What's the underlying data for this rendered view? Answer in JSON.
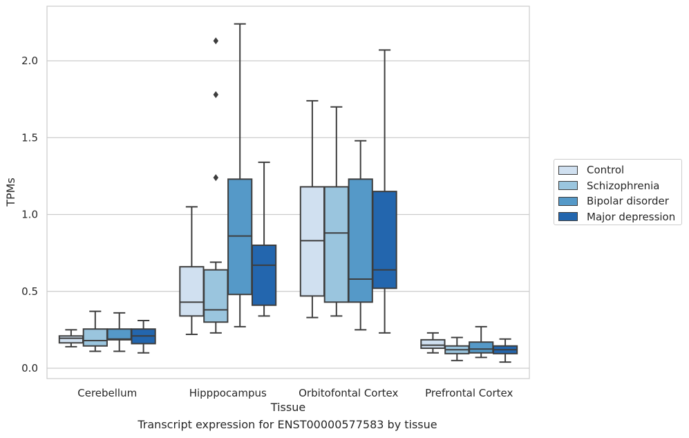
{
  "chart_data": {
    "type": "box",
    "title": "Transcript expression for ENST00000577583 by tissue",
    "xlabel": "Tissue",
    "ylabel": "TPMs",
    "ylim": [
      -0.07,
      2.35
    ],
    "yticks": [
      0.0,
      0.5,
      1.0,
      1.5,
      2.0
    ],
    "ytick_labels": [
      "0.0",
      "0.5",
      "1.0",
      "1.5",
      "2.0"
    ],
    "grid": "horizontal",
    "legend_position": "right",
    "categories": [
      "Cerebellum",
      "Hipppocampus",
      "Orbitofontal Cortex",
      "Prefrontal Cortex"
    ],
    "series": [
      {
        "name": "Control",
        "color": "#d0e0f0",
        "boxes": [
          {
            "whislo": 0.14,
            "q1": 0.165,
            "med": 0.195,
            "q3": 0.21,
            "whishi": 0.25,
            "fliers": []
          },
          {
            "whislo": 0.22,
            "q1": 0.34,
            "med": 0.43,
            "q3": 0.66,
            "whishi": 1.05,
            "fliers": []
          },
          {
            "whislo": 0.33,
            "q1": 0.47,
            "med": 0.83,
            "q3": 1.18,
            "whishi": 1.74,
            "fliers": []
          },
          {
            "whislo": 0.1,
            "q1": 0.13,
            "med": 0.15,
            "q3": 0.185,
            "whishi": 0.23,
            "fliers": []
          }
        ]
      },
      {
        "name": "Schizophrenia",
        "color": "#9ac5de",
        "boxes": [
          {
            "whislo": 0.11,
            "q1": 0.145,
            "med": 0.18,
            "q3": 0.255,
            "whishi": 0.37,
            "fliers": []
          },
          {
            "whislo": 0.23,
            "q1": 0.3,
            "med": 0.38,
            "q3": 0.64,
            "whishi": 0.69,
            "fliers": [
              1.24,
              1.78,
              2.13
            ]
          },
          {
            "whislo": 0.34,
            "q1": 0.43,
            "med": 0.88,
            "q3": 1.18,
            "whishi": 1.7,
            "fliers": []
          },
          {
            "whislo": 0.05,
            "q1": 0.095,
            "med": 0.12,
            "q3": 0.145,
            "whishi": 0.2,
            "fliers": []
          }
        ]
      },
      {
        "name": "Bipolar disorder",
        "color": "#5599c8",
        "boxes": [
          {
            "whislo": 0.11,
            "q1": 0.185,
            "med": 0.19,
            "q3": 0.255,
            "whishi": 0.36,
            "fliers": []
          },
          {
            "whislo": 0.27,
            "q1": 0.48,
            "med": 0.86,
            "q3": 1.23,
            "whishi": 2.24,
            "fliers": []
          },
          {
            "whislo": 0.25,
            "q1": 0.43,
            "med": 0.58,
            "q3": 1.23,
            "whishi": 1.48,
            "fliers": []
          },
          {
            "whislo": 0.07,
            "q1": 0.1,
            "med": 0.125,
            "q3": 0.17,
            "whishi": 0.27,
            "fliers": []
          }
        ]
      },
      {
        "name": "Major depression",
        "color": "#2366ae",
        "boxes": [
          {
            "whislo": 0.1,
            "q1": 0.16,
            "med": 0.21,
            "q3": 0.255,
            "whishi": 0.31,
            "fliers": []
          },
          {
            "whislo": 0.34,
            "q1": 0.41,
            "med": 0.67,
            "q3": 0.8,
            "whishi": 1.34,
            "fliers": []
          },
          {
            "whislo": 0.23,
            "q1": 0.52,
            "med": 0.64,
            "q3": 1.15,
            "whishi": 2.07,
            "fliers": []
          },
          {
            "whislo": 0.04,
            "q1": 0.095,
            "med": 0.12,
            "q3": 0.145,
            "whishi": 0.19,
            "fliers": []
          }
        ]
      }
    ]
  }
}
